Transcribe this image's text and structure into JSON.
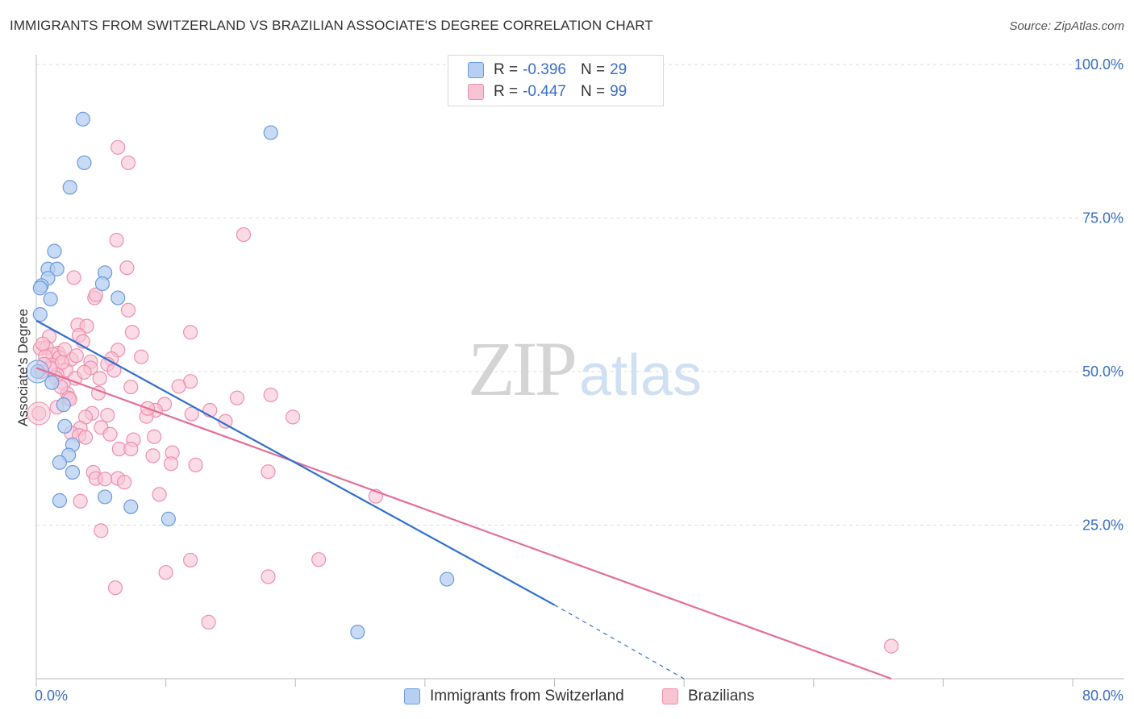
{
  "header": {
    "title": "IMMIGRANTS FROM SWITZERLAND VS BRAZILIAN ASSOCIATE'S DEGREE CORRELATION CHART",
    "source": "Source: ZipAtlas.com"
  },
  "watermark": {
    "zip": "ZIP",
    "atlas": "atlas"
  },
  "legend_top": {
    "rows": [
      {
        "r_label": "R = ",
        "r_value": "-0.396",
        "n_label": "N = ",
        "n_value": "29"
      },
      {
        "r_label": "R = ",
        "r_value": "-0.447",
        "n_label": "N = ",
        "n_value": "99"
      }
    ]
  },
  "legend_bottom": {
    "items": [
      {
        "label": "Immigrants from Switzerland"
      },
      {
        "label": "Brazilians"
      }
    ]
  },
  "colors": {
    "blue_fill": "#b7cff0",
    "blue_stroke": "#6a9be0",
    "blue_line": "#2f6fce",
    "pink_fill": "#f8c3d3",
    "pink_stroke": "#ee8fab",
    "pink_line": "#e46d98",
    "tick_label": "#3a6fc4",
    "grid": "#dddddd"
  },
  "chart_data": {
    "type": "scatter",
    "title": "IMMIGRANTS FROM SWITZERLAND VS BRAZILIAN ASSOCIATE'S DEGREE CORRELATION CHART",
    "xlabel": "",
    "ylabel": "Associate's Degree",
    "xlim": [
      0,
      80
    ],
    "ylim": [
      0,
      100
    ],
    "x_tick_labels": [
      "0.0%",
      "80.0%"
    ],
    "y_ticks": [
      25,
      50,
      75,
      100
    ],
    "y_tick_labels": [
      "25.0%",
      "50.0%",
      "75.0%",
      "100.0%"
    ],
    "grid": true,
    "series": [
      {
        "name": "Immigrants from Switzerland",
        "R": -0.396,
        "N": 29,
        "points": [
          [
            3.6,
            91.1
          ],
          [
            3.7,
            84.0
          ],
          [
            2.6,
            80.0
          ],
          [
            18.1,
            88.9
          ],
          [
            1.4,
            69.6
          ],
          [
            0.9,
            66.7
          ],
          [
            1.6,
            66.7
          ],
          [
            5.3,
            66.1
          ],
          [
            0.9,
            65.2
          ],
          [
            0.4,
            64.0
          ],
          [
            0.3,
            63.6
          ],
          [
            5.1,
            64.3
          ],
          [
            6.3,
            62.0
          ],
          [
            1.1,
            61.8
          ],
          [
            0.3,
            59.3
          ],
          [
            1.2,
            48.2
          ],
          [
            2.1,
            44.6
          ],
          [
            2.2,
            41.1
          ],
          [
            2.8,
            38.1
          ],
          [
            2.5,
            36.4
          ],
          [
            1.8,
            35.2
          ],
          [
            2.8,
            33.6
          ],
          [
            5.3,
            29.6
          ],
          [
            1.8,
            29.0
          ],
          [
            7.3,
            28.0
          ],
          [
            10.2,
            26.0
          ],
          [
            31.7,
            16.2
          ],
          [
            24.8,
            7.6
          ],
          [
            0.1,
            50.0
          ]
        ],
        "trend": {
          "x": [
            0.0,
            40.0
          ],
          "y": [
            58.3,
            12.0
          ],
          "dashed_to": [
            50.0,
            0.0
          ]
        }
      },
      {
        "name": "Brazilians",
        "R": -0.447,
        "N": 99,
        "points": [
          [
            6.3,
            86.5
          ],
          [
            7.1,
            84.0
          ],
          [
            16.0,
            72.3
          ],
          [
            6.2,
            71.4
          ],
          [
            7.0,
            66.9
          ],
          [
            2.9,
            65.3
          ],
          [
            4.5,
            62.0
          ],
          [
            4.6,
            62.5
          ],
          [
            7.1,
            60.0
          ],
          [
            3.2,
            57.6
          ],
          [
            3.9,
            57.4
          ],
          [
            7.4,
            56.4
          ],
          [
            11.9,
            56.4
          ],
          [
            1.0,
            55.7
          ],
          [
            3.3,
            55.9
          ],
          [
            3.6,
            54.9
          ],
          [
            0.3,
            53.8
          ],
          [
            0.8,
            53.9
          ],
          [
            6.3,
            53.5
          ],
          [
            1.7,
            53.0
          ],
          [
            1.3,
            52.8
          ],
          [
            0.7,
            52.5
          ],
          [
            1.8,
            52.3
          ],
          [
            2.7,
            52.0
          ],
          [
            8.1,
            52.4
          ],
          [
            5.8,
            52.1
          ],
          [
            4.2,
            51.6
          ],
          [
            5.5,
            51.2
          ],
          [
            1.2,
            51.1
          ],
          [
            4.2,
            50.6
          ],
          [
            2.3,
            50.2
          ],
          [
            1.6,
            49.5
          ],
          [
            1.5,
            49.0
          ],
          [
            3.0,
            48.9
          ],
          [
            4.9,
            48.9
          ],
          [
            11.9,
            48.4
          ],
          [
            2.1,
            48.1
          ],
          [
            11.0,
            47.6
          ],
          [
            7.3,
            47.5
          ],
          [
            2.4,
            46.4
          ],
          [
            18.1,
            46.2
          ],
          [
            15.5,
            45.7
          ],
          [
            2.5,
            45.7
          ],
          [
            9.9,
            44.7
          ],
          [
            1.6,
            44.2
          ],
          [
            9.2,
            43.7
          ],
          [
            13.4,
            43.7
          ],
          [
            4.3,
            43.2
          ],
          [
            5.5,
            42.9
          ],
          [
            12.0,
            43.1
          ],
          [
            8.5,
            42.7
          ],
          [
            19.8,
            42.6
          ],
          [
            3.8,
            42.6
          ],
          [
            14.6,
            41.9
          ],
          [
            5.0,
            40.9
          ],
          [
            3.4,
            40.8
          ],
          [
            2.7,
            40.0
          ],
          [
            3.3,
            39.6
          ],
          [
            3.8,
            39.3
          ],
          [
            9.1,
            39.4
          ],
          [
            7.5,
            38.9
          ],
          [
            6.4,
            37.4
          ],
          [
            7.3,
            37.4
          ],
          [
            10.5,
            36.8
          ],
          [
            9.0,
            36.3
          ],
          [
            10.4,
            35.0
          ],
          [
            12.3,
            34.8
          ],
          [
            4.4,
            33.6
          ],
          [
            17.9,
            33.7
          ],
          [
            4.6,
            32.6
          ],
          [
            5.3,
            32.5
          ],
          [
            6.3,
            32.6
          ],
          [
            6.8,
            32.0
          ],
          [
            9.5,
            30.0
          ],
          [
            26.2,
            29.7
          ],
          [
            3.4,
            28.9
          ],
          [
            5.0,
            24.1
          ],
          [
            11.9,
            19.3
          ],
          [
            21.8,
            19.4
          ],
          [
            10.0,
            17.3
          ],
          [
            17.9,
            16.6
          ],
          [
            6.1,
            14.8
          ],
          [
            13.3,
            9.2
          ],
          [
            66.0,
            5.3
          ],
          [
            0.4,
            50.0
          ],
          [
            0.2,
            43.2
          ],
          [
            1.1,
            50.5
          ],
          [
            2.0,
            51.5
          ],
          [
            3.7,
            49.9
          ],
          [
            0.6,
            51.2
          ],
          [
            1.9,
            47.5
          ],
          [
            2.6,
            45.5
          ],
          [
            4.8,
            46.5
          ],
          [
            0.5,
            54.5
          ],
          [
            6.0,
            50.2
          ],
          [
            2.2,
            53.6
          ],
          [
            3.1,
            52.6
          ],
          [
            8.6,
            44.0
          ],
          [
            5.7,
            39.8
          ]
        ],
        "trend": {
          "x": [
            0.0,
            66.0
          ],
          "y": [
            50.6,
            0.0
          ]
        }
      }
    ]
  }
}
